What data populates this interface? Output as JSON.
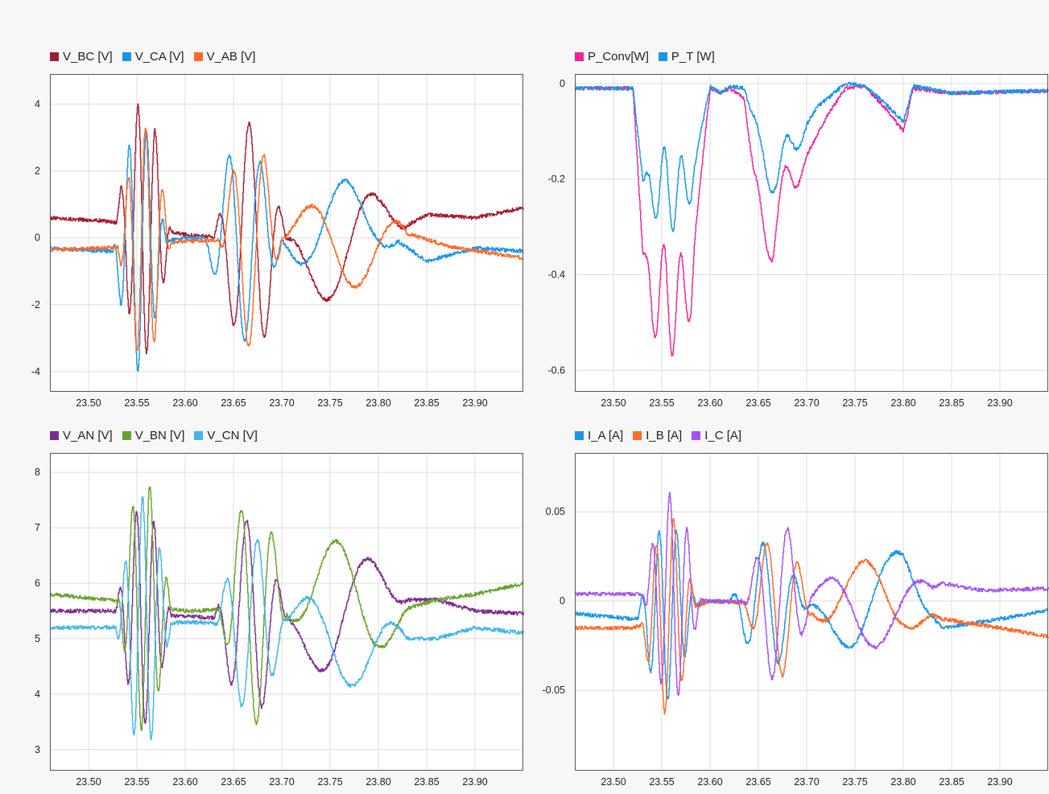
{
  "chart_data": [
    {
      "id": "line-voltages",
      "type": "line",
      "title": "",
      "xlim": [
        23.46,
        23.95
      ],
      "ylim": [
        -4.6,
        4.9
      ],
      "grid": true,
      "legend_position": "top-left",
      "x_ticks": [
        23.5,
        23.55,
        23.6,
        23.65,
        23.7,
        23.75,
        23.8,
        23.85,
        23.9
      ],
      "y_ticks": [
        -4,
        -2,
        0,
        2,
        4
      ],
      "series": [
        {
          "name": "V_BC [V]",
          "color": "#a21c31",
          "baseline": [
            [
              23.46,
              0.6
            ],
            [
              23.52,
              0.5
            ],
            [
              23.6,
              0.1
            ],
            [
              23.72,
              -0.2
            ],
            [
              23.8,
              -0.1
            ],
            [
              23.85,
              0.7
            ],
            [
              23.9,
              0.6
            ],
            [
              23.95,
              0.9
            ]
          ],
          "bursts": [
            [
              23.528,
              23.585,
              55,
              3.8,
              0
            ],
            [
              23.63,
              23.705,
              30,
              3.5,
              1.1
            ],
            [
              23.7,
              23.83,
              9,
              1.9,
              2.3
            ]
          ]
        },
        {
          "name": "V_CA [V]",
          "color": "#1b95e8",
          "baseline": [
            [
              23.46,
              -0.3
            ],
            [
              23.52,
              -0.4
            ],
            [
              23.6,
              0.0
            ],
            [
              23.75,
              -0.1
            ],
            [
              23.8,
              0.3
            ],
            [
              23.85,
              -0.7
            ],
            [
              23.9,
              -0.3
            ],
            [
              23.95,
              -0.4
            ]
          ],
          "bursts": [
            [
              23.525,
              23.58,
              55,
              3.7,
              2.1
            ],
            [
              23.62,
              23.7,
              30,
              3.0,
              3.2
            ],
            [
              23.7,
              23.82,
              9,
              1.7,
              4.2
            ]
          ]
        },
        {
          "name": "V_AB [V]",
          "color": "#ff6a2a",
          "baseline": [
            [
              23.46,
              -0.35
            ],
            [
              23.52,
              -0.3
            ],
            [
              23.6,
              -0.1
            ],
            [
              23.75,
              0.0
            ],
            [
              23.82,
              0.2
            ],
            [
              23.88,
              -0.3
            ],
            [
              23.95,
              -0.6
            ]
          ],
          "bursts": [
            [
              23.53,
              23.585,
              55,
              3.5,
              4.2
            ],
            [
              23.635,
              23.7,
              30,
              3.2,
              5.3
            ],
            [
              23.7,
              23.83,
              9,
              1.6,
              0.3
            ]
          ]
        }
      ]
    },
    {
      "id": "power",
      "type": "line",
      "title": "",
      "xlim": [
        23.46,
        23.95
      ],
      "ylim": [
        -0.645,
        0.02
      ],
      "grid": true,
      "legend_position": "top-left",
      "x_ticks": [
        23.5,
        23.55,
        23.6,
        23.65,
        23.7,
        23.75,
        23.8,
        23.85,
        23.9
      ],
      "y_ticks": [
        -0.6,
        -0.4,
        -0.2,
        0
      ],
      "series": [
        {
          "name": "P_Conv[W]",
          "color": "#f0239b",
          "baseline": [
            [
              23.46,
              -0.01
            ],
            [
              23.52,
              -0.01
            ],
            [
              23.53,
              -0.35
            ],
            [
              23.54,
              -0.45
            ],
            [
              23.58,
              -0.45
            ],
            [
              23.585,
              -0.3
            ],
            [
              23.595,
              -0.1
            ],
            [
              23.6,
              -0.01
            ],
            [
              23.61,
              -0.02
            ],
            [
              23.62,
              -0.01
            ],
            [
              23.635,
              -0.03
            ],
            [
              23.645,
              -0.2
            ],
            [
              23.665,
              -0.33
            ],
            [
              23.68,
              -0.22
            ],
            [
              23.7,
              -0.15
            ],
            [
              23.72,
              -0.07
            ],
            [
              23.74,
              -0.01
            ],
            [
              23.76,
              -0.005
            ],
            [
              23.78,
              -0.05
            ],
            [
              23.8,
              -0.1
            ],
            [
              23.81,
              -0.01
            ],
            [
              23.85,
              -0.02
            ],
            [
              23.95,
              -0.015
            ]
          ],
          "bursts": [
            [
              23.53,
              23.585,
              55,
              0.12,
              0.4
            ],
            [
              23.64,
              23.7,
              30,
              0.07,
              1.0
            ]
          ]
        },
        {
          "name": "P_T [W]",
          "color": "#1b95e8",
          "baseline": [
            [
              23.46,
              -0.01
            ],
            [
              23.52,
              -0.01
            ],
            [
              23.53,
              -0.2
            ],
            [
              23.54,
              -0.22
            ],
            [
              23.58,
              -0.22
            ],
            [
              23.59,
              -0.1
            ],
            [
              23.6,
              -0.005
            ],
            [
              23.61,
              -0.02
            ],
            [
              23.62,
              -0.005
            ],
            [
              23.635,
              -0.01
            ],
            [
              23.65,
              -0.12
            ],
            [
              23.67,
              -0.2
            ],
            [
              23.69,
              -0.12
            ],
            [
              23.71,
              -0.05
            ],
            [
              23.74,
              0.0
            ],
            [
              23.76,
              -0.005
            ],
            [
              23.78,
              -0.04
            ],
            [
              23.8,
              -0.08
            ],
            [
              23.81,
              -0.005
            ],
            [
              23.85,
              -0.02
            ],
            [
              23.95,
              -0.015
            ]
          ],
          "bursts": [
            [
              23.53,
              23.585,
              55,
              0.09,
              0.2
            ],
            [
              23.64,
              23.7,
              30,
              0.06,
              0.6
            ]
          ]
        }
      ]
    },
    {
      "id": "phase-voltages",
      "type": "line",
      "title": "",
      "xlim": [
        23.46,
        23.95
      ],
      "ylim": [
        2.62,
        8.35
      ],
      "grid": true,
      "legend_position": "top-left",
      "x_ticks": [
        23.5,
        23.55,
        23.6,
        23.65,
        23.7,
        23.75,
        23.8,
        23.85,
        23.9
      ],
      "y_ticks": [
        3,
        4,
        5,
        6,
        7,
        8
      ],
      "series": [
        {
          "name": "V_AN [V]",
          "color": "#7b2d8e",
          "baseline": [
            [
              23.46,
              5.5
            ],
            [
              23.52,
              5.5
            ],
            [
              23.6,
              5.4
            ],
            [
              23.75,
              5.3
            ],
            [
              23.82,
              5.7
            ],
            [
              23.86,
              5.7
            ],
            [
              23.9,
              5.5
            ],
            [
              23.95,
              5.45
            ]
          ],
          "bursts": [
            [
              23.528,
              23.585,
              55,
              2.0,
              0.5
            ],
            [
              23.63,
              23.705,
              30,
              1.8,
              1.6
            ],
            [
              23.7,
              23.83,
              9,
              1.1,
              2.7
            ]
          ]
        },
        {
          "name": "V_BN [V]",
          "color": "#6aa12d",
          "baseline": [
            [
              23.46,
              5.8
            ],
            [
              23.52,
              5.7
            ],
            [
              23.6,
              5.5
            ],
            [
              23.75,
              5.6
            ],
            [
              23.82,
              5.5
            ],
            [
              23.86,
              5.7
            ],
            [
              23.9,
              5.8
            ],
            [
              23.95,
              6.0
            ]
          ],
          "bursts": [
            [
              23.53,
              23.585,
              55,
              2.3,
              2.6
            ],
            [
              23.635,
              23.705,
              30,
              2.1,
              3.7
            ],
            [
              23.7,
              23.83,
              9,
              1.2,
              4.8
            ]
          ]
        },
        {
          "name": "V_CN [V]",
          "color": "#44b5e6",
          "baseline": [
            [
              23.46,
              5.2
            ],
            [
              23.52,
              5.2
            ],
            [
              23.6,
              5.3
            ],
            [
              23.75,
              5.2
            ],
            [
              23.82,
              5.0
            ],
            [
              23.86,
              5.0
            ],
            [
              23.9,
              5.2
            ],
            [
              23.95,
              5.1
            ]
          ],
          "bursts": [
            [
              23.528,
              23.585,
              55,
              2.3,
              4.6
            ],
            [
              23.63,
              23.705,
              30,
              1.6,
              5.7
            ],
            [
              23.7,
              23.83,
              9,
              1.0,
              0.6
            ]
          ]
        }
      ]
    },
    {
      "id": "currents",
      "type": "line",
      "title": "",
      "xlim": [
        23.46,
        23.95
      ],
      "ylim": [
        -0.095,
        0.083
      ],
      "grid": true,
      "legend_position": "top-left",
      "x_ticks": [
        23.5,
        23.55,
        23.6,
        23.65,
        23.7,
        23.75,
        23.8,
        23.85,
        23.9
      ],
      "y_ticks": [
        -0.05,
        0,
        0.05
      ],
      "series": [
        {
          "name": "I_A [A]",
          "color": "#1b95e8",
          "baseline": [
            [
              23.46,
              -0.007
            ],
            [
              23.52,
              -0.01
            ],
            [
              23.6,
              0.0
            ],
            [
              23.75,
              -0.005
            ],
            [
              23.8,
              0.01
            ],
            [
              23.84,
              -0.015
            ],
            [
              23.9,
              -0.01
            ],
            [
              23.95,
              -0.005
            ]
          ],
          "bursts": [
            [
              23.525,
              23.585,
              55,
              0.05,
              0.3
            ],
            [
              23.62,
              23.7,
              30,
              0.035,
              1.4
            ],
            [
              23.7,
              23.83,
              9,
              0.025,
              2.5
            ]
          ]
        },
        {
          "name": "I_B [A]",
          "color": "#ff6a2a",
          "baseline": [
            [
              23.46,
              -0.015
            ],
            [
              23.52,
              -0.015
            ],
            [
              23.6,
              0.0
            ],
            [
              23.75,
              -0.005
            ],
            [
              23.8,
              0.0
            ],
            [
              23.84,
              -0.01
            ],
            [
              23.9,
              -0.015
            ],
            [
              23.95,
              -0.02
            ]
          ],
          "bursts": [
            [
              23.528,
              23.585,
              55,
              0.055,
              2.4
            ],
            [
              23.635,
              23.705,
              30,
              0.04,
              3.5
            ],
            [
              23.7,
              23.83,
              9,
              0.027,
              4.6
            ]
          ]
        },
        {
          "name": "I_C [A]",
          "color": "#a550f5",
          "baseline": [
            [
              23.46,
              0.004
            ],
            [
              23.52,
              0.004
            ],
            [
              23.6,
              0.0
            ],
            [
              23.75,
              0.0
            ],
            [
              23.8,
              0.0
            ],
            [
              23.84,
              0.01
            ],
            [
              23.88,
              0.006
            ],
            [
              23.95,
              0.007
            ]
          ],
          "bursts": [
            [
              23.53,
              23.59,
              55,
              0.058,
              4.5
            ],
            [
              23.635,
              23.705,
              30,
              0.045,
              5.6
            ],
            [
              23.7,
              23.83,
              9,
              0.026,
              0.7
            ]
          ]
        }
      ]
    }
  ]
}
